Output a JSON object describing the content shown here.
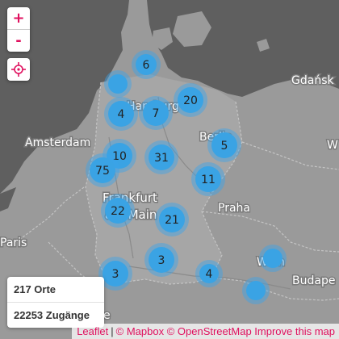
{
  "controls": {
    "zoom_in": "+",
    "zoom_out": "-"
  },
  "stats": {
    "places": "217 Orte",
    "entries": "22253 Zugänge"
  },
  "attribution": {
    "leaflet": "Leaflet",
    "separator": "|",
    "mapbox": "© Mapbox",
    "osm": "© OpenStreetMap",
    "improve": "Improve this map"
  },
  "places": {
    "hamburg": "Hamburg",
    "amsterdam": "Amsterdam",
    "berlin": "Berlin",
    "gdansk": "Gdańsk",
    "frankfurt_1": "Frankfurt",
    "frankfurt_2": "am Main",
    "praha": "Praha",
    "paris": "Paris",
    "wien": "Wien",
    "budapest": "Budape",
    "warszawa": "W",
    "seine": "e"
  },
  "clusters": [
    {
      "id": "c-northsea",
      "count": ""
    },
    {
      "id": "c-kiel",
      "count": "6"
    },
    {
      "id": "c-rostock",
      "count": "20"
    },
    {
      "id": "c-bremen",
      "count": "4"
    },
    {
      "id": "c-hamburg",
      "count": "7"
    },
    {
      "id": "c-berlin",
      "count": "5"
    },
    {
      "id": "c-ruhr",
      "count": "10"
    },
    {
      "id": "c-cologne",
      "count": "75"
    },
    {
      "id": "c-hannover",
      "count": "31"
    },
    {
      "id": "c-dresden",
      "count": "11"
    },
    {
      "id": "c-frankfurt",
      "count": "22"
    },
    {
      "id": "c-nuremberg",
      "count": "21"
    },
    {
      "id": "c-munich",
      "count": "3"
    },
    {
      "id": "c-stuttgart",
      "count": "3"
    },
    {
      "id": "c-linz",
      "count": "4"
    },
    {
      "id": "c-wien",
      "count": ""
    },
    {
      "id": "c-graz",
      "count": ""
    }
  ]
}
